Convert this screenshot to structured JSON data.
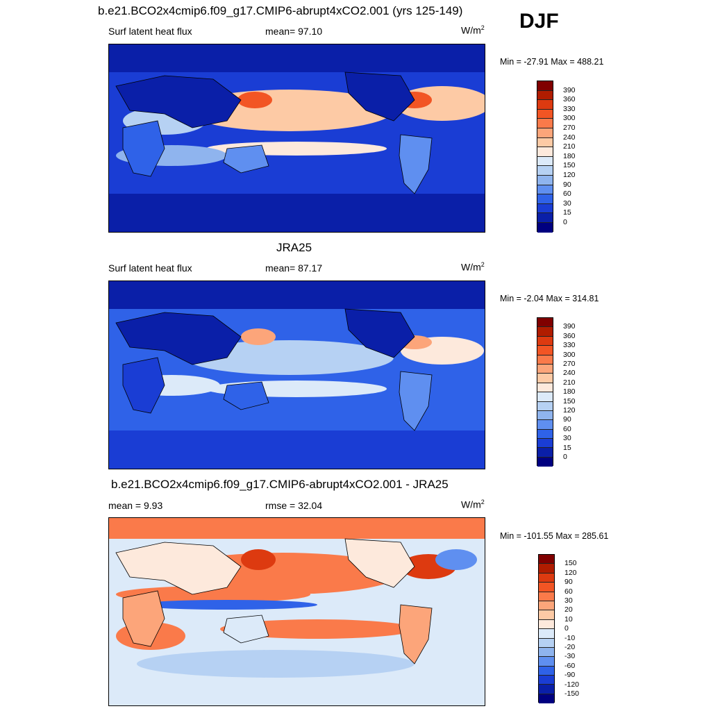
{
  "season": "DJF",
  "panels": [
    {
      "title": "b.e21.BCO2x4cmip6.f09_g17.CMIP6-abrupt4xCO2.001 (yrs 125-149)",
      "left_label": "Surf latent heat flux",
      "center_label": "mean=  97.10",
      "units": "W/m",
      "units_sup": "2",
      "minmax": "Min = -27.91 Max = 488.21",
      "map_kind": "abs_model"
    },
    {
      "title": "JRA25",
      "left_label": "Surf latent heat flux",
      "center_label": "mean=  87.17",
      "units": "W/m",
      "units_sup": "2",
      "minmax": "Min =  -2.04 Max = 314.81",
      "map_kind": "abs_obs"
    },
    {
      "title": "b.e21.BCO2x4cmip6.f09_g17.CMIP6-abrupt4xCO2.001 - JRA25",
      "left_label": "mean =   9.93",
      "center_label": "rmse =  32.04",
      "units": "W/m",
      "units_sup": "2",
      "minmax": "Min = -101.55 Max = 285.61",
      "map_kind": "diff"
    }
  ],
  "colorbars": {
    "abs": {
      "labels": [
        "390",
        "360",
        "330",
        "300",
        "270",
        "240",
        "210",
        "180",
        "150",
        "120",
        "90",
        "60",
        "30",
        "15",
        "0"
      ],
      "colors": [
        "#800000",
        "#b01c00",
        "#dd3a10",
        "#f25524",
        "#fa7a4a",
        "#fca57a",
        "#fdcaa5",
        "#fde9dc",
        "#dceaf9",
        "#b6d1f3",
        "#8fb4ee",
        "#5f8ff0",
        "#2f62e8",
        "#1a3dd4",
        "#0a1fa8",
        "#000080"
      ]
    },
    "diff": {
      "labels": [
        "150",
        "120",
        "90",
        "60",
        "30",
        "20",
        "10",
        "0",
        "-10",
        "-20",
        "-30",
        "-60",
        "-90",
        "-120",
        "-150"
      ],
      "colors": [
        "#800000",
        "#b01c00",
        "#dd3a10",
        "#f25524",
        "#fa7a4a",
        "#fca57a",
        "#fdcaa5",
        "#fde9dc",
        "#dceaf9",
        "#b6d1f3",
        "#8fb4ee",
        "#5f8ff0",
        "#2f62e8",
        "#1a3dd4",
        "#0a1fa8",
        "#000080"
      ]
    }
  }
}
